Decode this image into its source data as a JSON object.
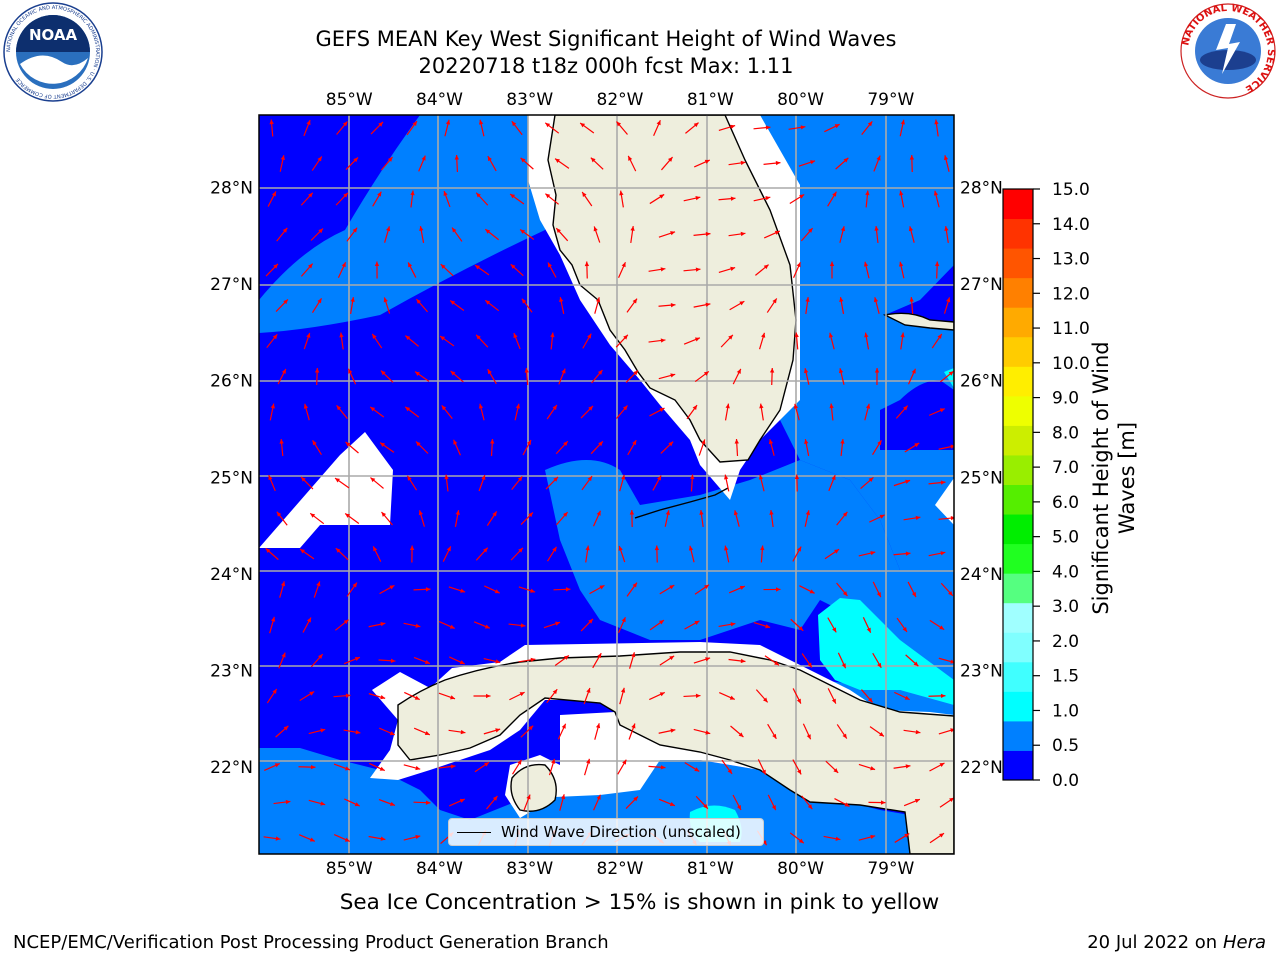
{
  "header": {
    "title_line1": "GEFS MEAN Key West Significant Height of Wind Waves",
    "title_line2": "20220718 t18z 000h fcst   Max: 1.11"
  },
  "logos": {
    "noaa_text": "NOAA",
    "noaa_ring": "NATIONAL OCEANIC AND ATMOSPHERIC ADMINISTRATION · U.S. DEPARTMENT OF COMMERCE",
    "nws_ring": "NATIONAL WEATHER SERVICE"
  },
  "map": {
    "lon_ticks": [
      "85°W",
      "84°W",
      "83°W",
      "82°W",
      "81°W",
      "80°W",
      "79°W"
    ],
    "lat_ticks": [
      "28°N",
      "27°N",
      "26°N",
      "25°N",
      "24°N",
      "23°N",
      "22°N"
    ],
    "lon_values": [
      -85,
      -84,
      -83,
      -82,
      -81,
      -80,
      -79
    ],
    "lat_values": [
      28,
      27,
      26,
      25,
      24,
      23,
      22
    ],
    "lon_range": [
      -86,
      -78.3
    ],
    "lat_range": [
      21.1,
      28.75
    ],
    "legend_label": "Wind Wave Direction (unscaled)",
    "land_color": "#eeeedd",
    "arrow_color": "#ff0000"
  },
  "colorbar": {
    "label": "Significant Height of Wind Waves [m]",
    "ticks": [
      "15.0",
      "14.0",
      "13.0",
      "12.0",
      "11.0",
      "10.0",
      "9.0",
      "8.0",
      "7.0",
      "6.0",
      "5.0",
      "4.0",
      "3.0",
      "2.0",
      "1.5",
      "1.0",
      "0.5",
      "0.0"
    ],
    "colors_bottom_to_top": [
      "#0000ff",
      "#0080ff",
      "#00ffff",
      "#40ffff",
      "#80ffff",
      "#a0ffff",
      "#55ff80",
      "#20ff20",
      "#00ee00",
      "#55ee00",
      "#99ee00",
      "#ccee00",
      "#eeff00",
      "#ffee00",
      "#ffcc00",
      "#ffaa00",
      "#ff8000",
      "#ff5500",
      "#ff3300",
      "#ff0000"
    ]
  },
  "caption": "Sea Ice Concentration > 15% is shown in pink to yellow",
  "footer": {
    "left": "NCEP/EMC/Verification Post Processing Product Generation Branch",
    "right_date": "20 Jul 2022 on ",
    "right_host": "Hera"
  }
}
